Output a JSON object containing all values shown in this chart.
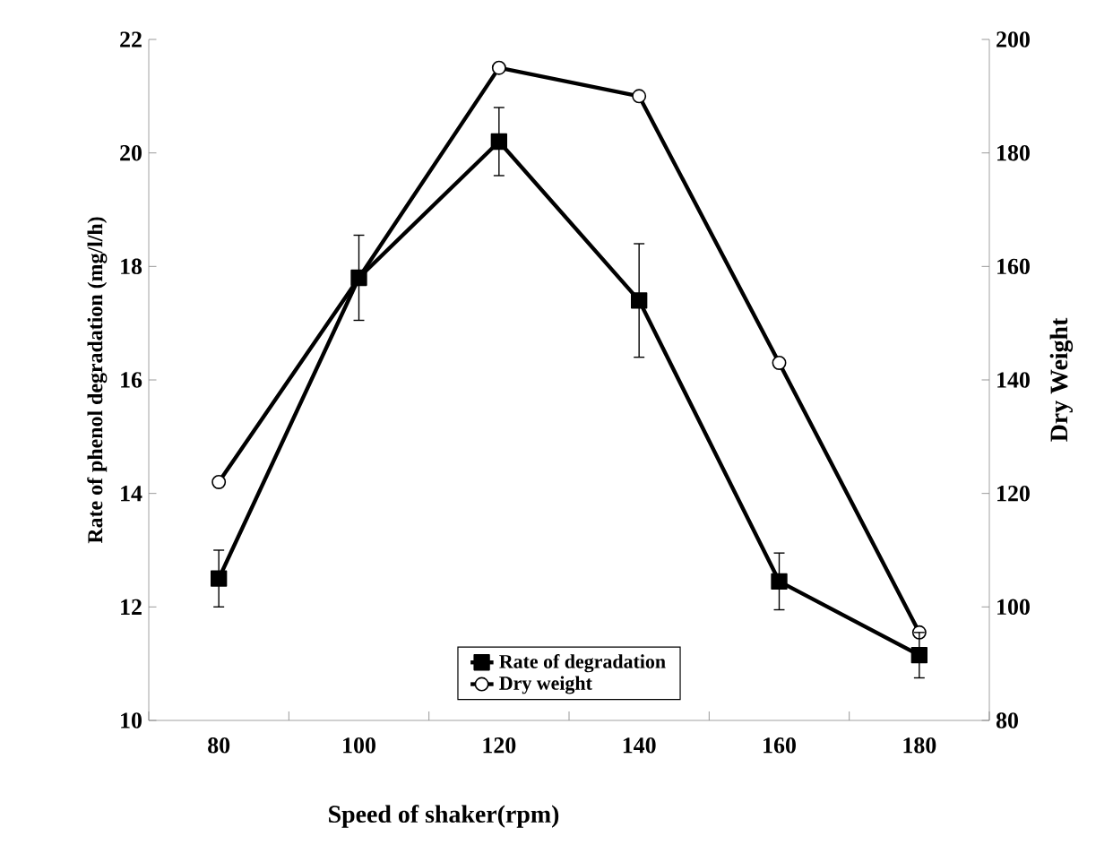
{
  "chart_data": {
    "type": "line",
    "xlabel": "Speed of shaker(rpm)",
    "ylabel": "Rate of phenol degradation (mg/l/h)",
    "y2label": "Dry Weight",
    "categories": [
      "80",
      "100",
      "120",
      "140",
      "160",
      "180"
    ],
    "series": [
      {
        "name": "Rate of degradation",
        "color": "#000000",
        "marker": "square",
        "values": [
          12.5,
          17.8,
          20.2,
          17.4,
          12.45,
          11.15
        ],
        "errors": [
          0.5,
          0.75,
          0.6,
          1.0,
          0.5,
          0.4
        ]
      },
      {
        "name": "Dry weight",
        "color": "#000000",
        "marker": "circle",
        "axis": "y2",
        "values": [
          122,
          158,
          195,
          190,
          143,
          95.5
        ]
      }
    ],
    "ylim": [
      10,
      22
    ],
    "yticks": [
      10,
      12,
      14,
      16,
      18,
      20,
      22
    ],
    "y2lim": [
      80,
      200
    ],
    "y2ticks": [
      80,
      100,
      120,
      140,
      160,
      180,
      200
    ],
    "legend": "bottom",
    "grid": false,
    "line_style": "solid"
  }
}
